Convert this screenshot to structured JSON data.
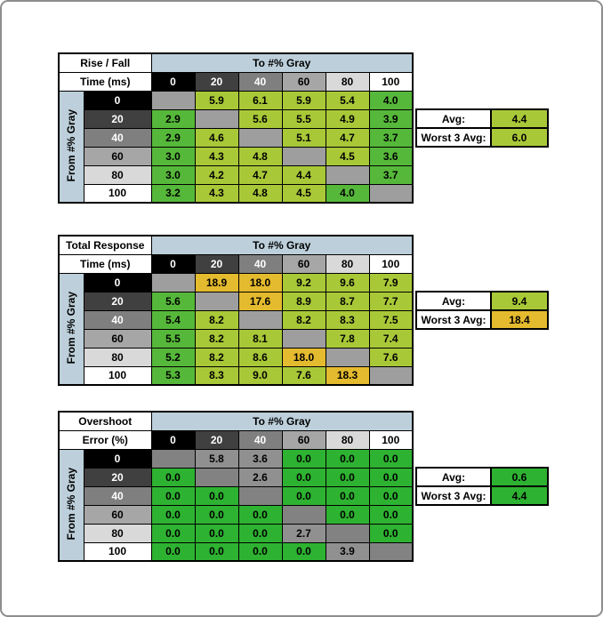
{
  "palette": {
    "g1": "#56b83a",
    "yg": "#a9c838",
    "gd": "#e4ba2e",
    "g3": "#2eb231",
    "gy": "#909090",
    "d12": "#9e9e9e",
    "d3": "#828282",
    "axis_bg": "#bccfda"
  },
  "gray_scale": [
    {
      "label": "0",
      "bg": "#000000",
      "fg": "#ffffff"
    },
    {
      "label": "20",
      "bg": "#404040",
      "fg": "#ffffff"
    },
    {
      "label": "40",
      "bg": "#7f7f7f",
      "fg": "#ffffff"
    },
    {
      "label": "60",
      "bg": "#a6a6a6",
      "fg": "#000000"
    },
    {
      "label": "80",
      "bg": "#d9d9d9",
      "fg": "#000000"
    },
    {
      "label": "100",
      "bg": "#ffffff",
      "fg": "#000000"
    }
  ],
  "chart_data": [
    {
      "type": "heatmap",
      "title_line1": "Rise / Fall",
      "title_line2": "Time (ms)",
      "col_axis": "To #% Gray",
      "row_axis": "From #% Gray",
      "categories": [
        "0",
        "20",
        "40",
        "60",
        "80",
        "100"
      ],
      "diag_color": "d12",
      "values": [
        [
          null,
          5.9,
          6.1,
          5.9,
          5.4,
          4.0
        ],
        [
          2.9,
          null,
          5.6,
          5.5,
          4.9,
          3.9
        ],
        [
          2.9,
          4.6,
          null,
          5.1,
          4.7,
          3.7
        ],
        [
          3.0,
          4.3,
          4.8,
          null,
          4.5,
          3.6
        ],
        [
          3.0,
          4.2,
          4.7,
          4.4,
          null,
          3.7
        ],
        [
          3.2,
          4.3,
          4.8,
          4.5,
          4.0,
          null
        ]
      ],
      "cell_colors": [
        [
          "",
          "yg",
          "yg",
          "yg",
          "yg",
          "g1"
        ],
        [
          "g1",
          "",
          "yg",
          "yg",
          "yg",
          "g1"
        ],
        [
          "g1",
          "yg",
          "",
          "yg",
          "yg",
          "g1"
        ],
        [
          "g1",
          "yg",
          "yg",
          "",
          "yg",
          "g1"
        ],
        [
          "g1",
          "yg",
          "yg",
          "yg",
          "",
          "g1"
        ],
        [
          "g1",
          "yg",
          "yg",
          "yg",
          "g1",
          ""
        ]
      ],
      "summary": {
        "avg_label": "Avg:",
        "avg_value": 4.4,
        "avg_color": "yg",
        "worst_label": "Worst 3 Avg:",
        "worst_value": 6.0,
        "worst_color": "yg"
      }
    },
    {
      "type": "heatmap",
      "title_line1": "Total Response",
      "title_line2": "Time (ms)",
      "col_axis": "To #% Gray",
      "row_axis": "From #% Gray",
      "categories": [
        "0",
        "20",
        "40",
        "60",
        "80",
        "100"
      ],
      "diag_color": "d12",
      "values": [
        [
          null,
          18.9,
          18.0,
          9.2,
          9.6,
          7.9
        ],
        [
          5.6,
          null,
          17.6,
          8.9,
          8.7,
          7.7
        ],
        [
          5.4,
          8.2,
          null,
          8.2,
          8.3,
          7.5
        ],
        [
          5.5,
          8.2,
          8.1,
          null,
          7.8,
          7.4
        ],
        [
          5.2,
          8.2,
          8.6,
          18.0,
          null,
          7.6
        ],
        [
          5.3,
          8.3,
          9.0,
          7.6,
          18.3,
          null
        ]
      ],
      "cell_colors": [
        [
          "",
          "gd",
          "gd",
          "yg",
          "yg",
          "yg"
        ],
        [
          "g1",
          "",
          "gd",
          "yg",
          "yg",
          "yg"
        ],
        [
          "g1",
          "yg",
          "",
          "yg",
          "yg",
          "yg"
        ],
        [
          "g1",
          "yg",
          "yg",
          "",
          "yg",
          "yg"
        ],
        [
          "g1",
          "yg",
          "yg",
          "gd",
          "",
          "yg"
        ],
        [
          "g1",
          "yg",
          "yg",
          "yg",
          "gd",
          ""
        ]
      ],
      "summary": {
        "avg_label": "Avg:",
        "avg_value": 9.4,
        "avg_color": "yg",
        "worst_label": "Worst 3 Avg:",
        "worst_value": 18.4,
        "worst_color": "gd"
      }
    },
    {
      "type": "heatmap",
      "title_line1": "Overshoot",
      "title_line2": "Error (%)",
      "col_axis": "To #% Gray",
      "row_axis": "From #% Gray",
      "categories": [
        "0",
        "20",
        "40",
        "60",
        "80",
        "100"
      ],
      "diag_color": "d3",
      "values": [
        [
          null,
          5.8,
          3.6,
          0.0,
          0.0,
          0.0
        ],
        [
          0.0,
          null,
          2.6,
          0.0,
          0.0,
          0.0
        ],
        [
          0.0,
          0.0,
          null,
          0.0,
          0.0,
          0.0
        ],
        [
          0.0,
          0.0,
          0.0,
          null,
          0.0,
          0.0
        ],
        [
          0.0,
          0.0,
          0.0,
          2.7,
          null,
          0.0
        ],
        [
          0.0,
          0.0,
          0.0,
          0.0,
          3.9,
          null
        ]
      ],
      "cell_colors": [
        [
          "",
          "gy",
          "gy",
          "g3",
          "g3",
          "g3"
        ],
        [
          "g3",
          "",
          "gy",
          "g3",
          "g3",
          "g3"
        ],
        [
          "g3",
          "g3",
          "",
          "g3",
          "g3",
          "g3"
        ],
        [
          "g3",
          "g3",
          "g3",
          "",
          "g3",
          "g3"
        ],
        [
          "g3",
          "g3",
          "g3",
          "gy",
          "",
          "g3"
        ],
        [
          "g3",
          "g3",
          "g3",
          "g3",
          "gy",
          ""
        ]
      ],
      "summary": {
        "avg_label": "Avg:",
        "avg_value": 0.6,
        "avg_color": "g3",
        "worst_label": "Worst 3 Avg:",
        "worst_value": 4.4,
        "worst_color": "g3"
      }
    }
  ]
}
